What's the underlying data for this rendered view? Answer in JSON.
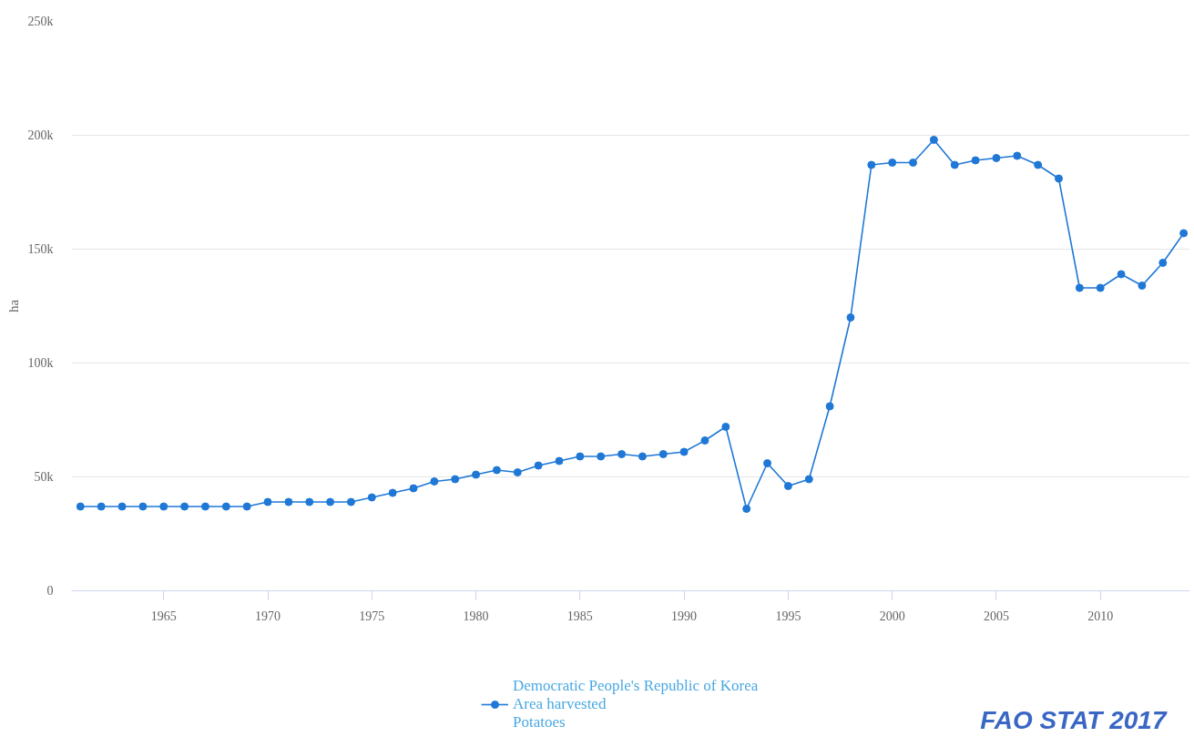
{
  "chart_data": {
    "type": "line",
    "ylabel": "ha",
    "x": [
      1961,
      1962,
      1963,
      1964,
      1965,
      1966,
      1967,
      1968,
      1969,
      1970,
      1971,
      1972,
      1973,
      1974,
      1975,
      1976,
      1977,
      1978,
      1979,
      1980,
      1981,
      1982,
      1983,
      1984,
      1985,
      1986,
      1987,
      1988,
      1989,
      1990,
      1991,
      1992,
      1993,
      1994,
      1995,
      1996,
      1997,
      1998,
      1999,
      2000,
      2001,
      2002,
      2003,
      2004,
      2005,
      2006,
      2007,
      2008,
      2009,
      2010,
      2011,
      2012,
      2013,
      2014
    ],
    "series": [
      {
        "name": "Democratic People's Republic of Korea\nArea harvested\nPotatoes",
        "color": "#1f78d6",
        "values": [
          37000,
          37000,
          37000,
          37000,
          37000,
          37000,
          37000,
          37000,
          37000,
          39000,
          39000,
          39000,
          39000,
          39000,
          41000,
          43000,
          45000,
          48000,
          49000,
          51000,
          53000,
          52000,
          55000,
          57000,
          59000,
          59000,
          60000,
          59000,
          60000,
          61000,
          66000,
          72000,
          36000,
          56000,
          46000,
          49000,
          81000,
          120000,
          187000,
          188000,
          188000,
          198000,
          187000,
          189000,
          190000,
          191000,
          187000,
          181000,
          133000,
          133000,
          139000,
          134000,
          144000,
          157000
        ]
      }
    ],
    "xlim": [
      1960.57,
      2014.3
    ],
    "xticks": [
      1965,
      1970,
      1975,
      1980,
      1985,
      1990,
      1995,
      2000,
      2005,
      2010
    ],
    "ylim": [
      0,
      250000
    ],
    "yticks": [
      0,
      {
        "value": 50000,
        "label": "50k"
      },
      {
        "value": 100000,
        "label": "100k"
      },
      {
        "value": 150000,
        "label": "150k"
      },
      {
        "value": 200000,
        "label": "200k"
      },
      {
        "value": 250000,
        "label": "250k"
      }
    ],
    "grid": "y",
    "legend": "bottom",
    "marker": "circle",
    "line_style": "solid",
    "annotations": [
      "FAO STAT 2017"
    ]
  }
}
